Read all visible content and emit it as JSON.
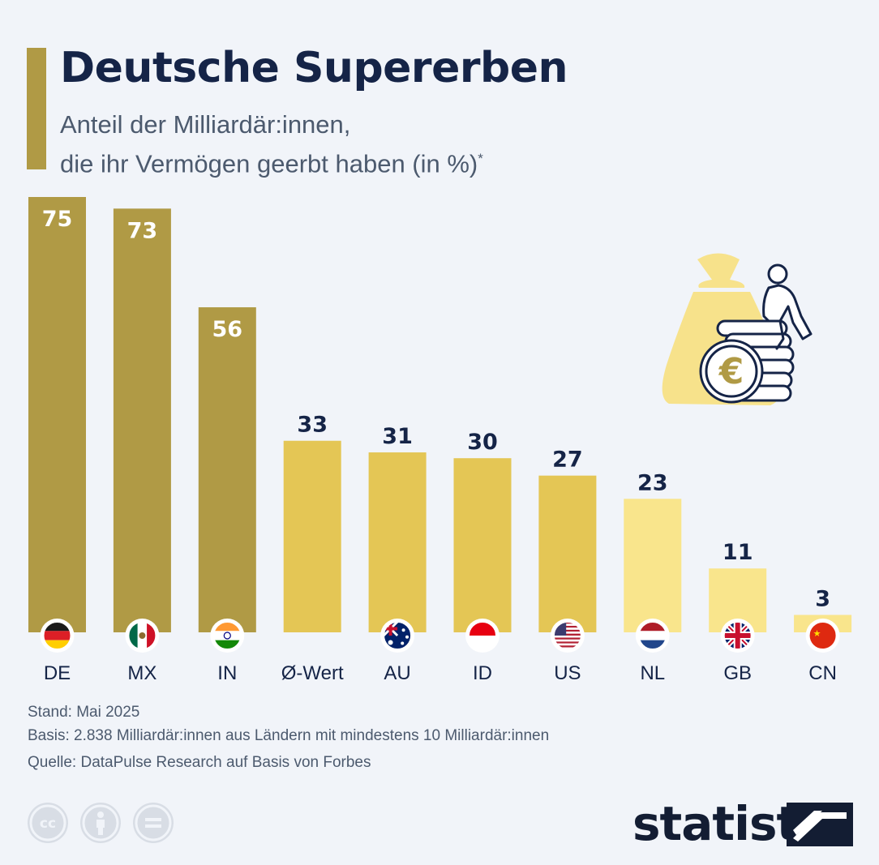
{
  "header": {
    "title": "Deutsche Supererben",
    "subtitle_line1": "Anteil der Milliardär:innen,",
    "subtitle_line2": "die ihr Vermögen geerbt haben (in %)",
    "subtitle_footnote_mark": "*"
  },
  "chart_data": {
    "type": "bar",
    "categories": [
      "DE",
      "MX",
      "IN",
      "Ø-Wert",
      "AU",
      "ID",
      "US",
      "NL",
      "GB",
      "CN"
    ],
    "values": [
      75,
      73,
      56,
      33,
      31,
      30,
      27,
      23,
      11,
      3
    ],
    "title": "Deutsche Supererben",
    "ylabel": "",
    "xlabel": "",
    "ylim": [
      0,
      75
    ],
    "grid": false,
    "bar_colors": [
      "#b09a45",
      "#b09a45",
      "#b09a45",
      "#e4c655",
      "#e4c655",
      "#e4c655",
      "#e4c655",
      "#f9e58c",
      "#f9e58c",
      "#f9e58c"
    ],
    "flags": [
      "flag-germany-icon",
      "flag-mexico-icon",
      "flag-india-icon",
      null,
      "flag-australia-icon",
      "flag-indonesia-icon",
      "flag-usa-icon",
      "flag-netherlands-icon",
      "flag-uk-icon",
      "flag-china-icon"
    ]
  },
  "footer": {
    "stand": "Stand: Mai 2025",
    "basis": "Basis: 2.838 Milliardär:innen aus Ländern mit mindestens 10 Milliardär:innen",
    "quelle": "Quelle: DataPulse Research auf Basis von Forbes"
  },
  "license_icons": [
    "cc-icon",
    "attribution-icon",
    "no-derivatives-icon"
  ],
  "brand": {
    "name": "statista"
  },
  "colors": {
    "dark_gold": "#b09a45",
    "mid_gold": "#e4c655",
    "light_gold": "#f9e58c",
    "navy": "#152447"
  }
}
